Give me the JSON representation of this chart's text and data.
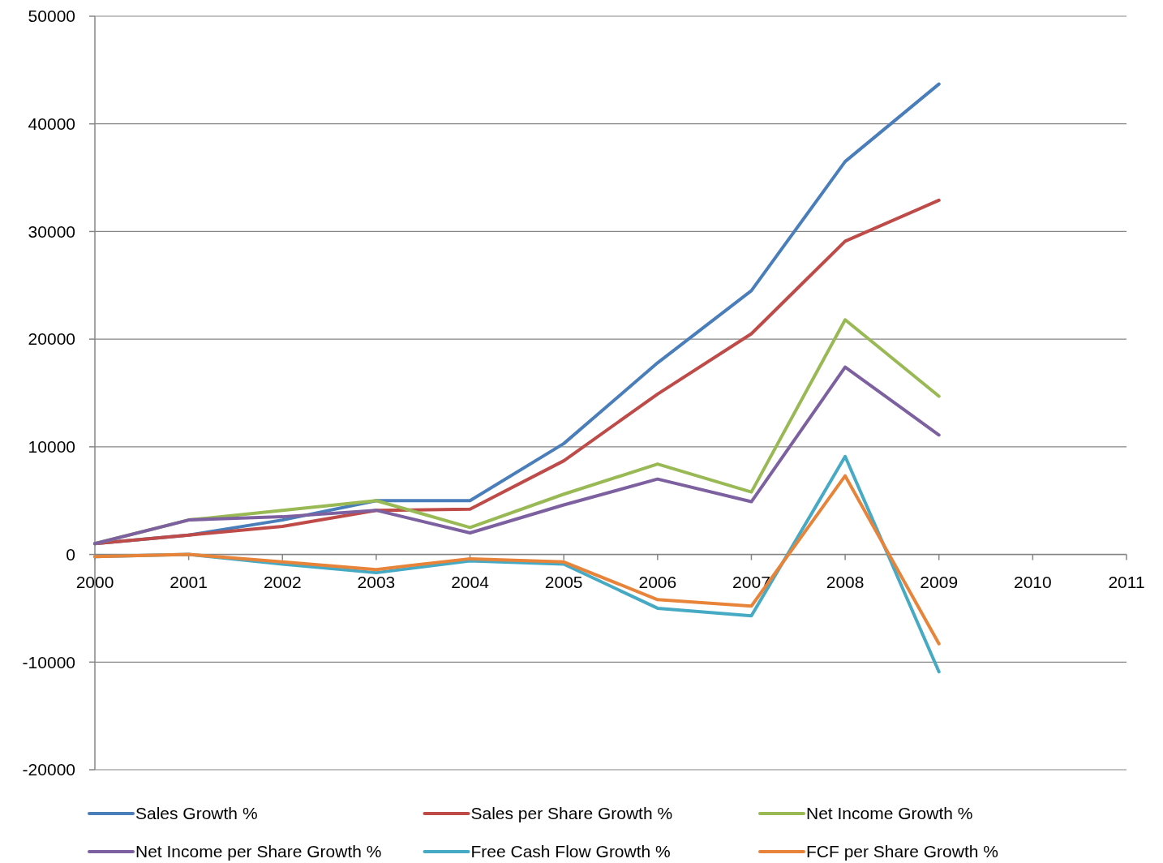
{
  "chart_data": {
    "type": "line",
    "x": [
      2000,
      2001,
      2002,
      2003,
      2004,
      2005,
      2006,
      2007,
      2008,
      2009
    ],
    "xlim": [
      2000,
      2011
    ],
    "xticks": [
      2000,
      2001,
      2002,
      2003,
      2004,
      2005,
      2006,
      2007,
      2008,
      2009,
      2010,
      2011
    ],
    "ylim": [
      -20000,
      50000
    ],
    "yticks": [
      -20000,
      -10000,
      0,
      10000,
      20000,
      30000,
      40000,
      50000
    ],
    "grid": "y",
    "legend": "bottom",
    "marker": "none",
    "line_style": "solid",
    "series": [
      {
        "name": "Sales Growth %",
        "color": "#4a7ebb",
        "values": [
          1000,
          1800,
          3200,
          5000,
          5000,
          10300,
          17800,
          24500,
          36500,
          43700
        ]
      },
      {
        "name": "Sales per Share Growth %",
        "color": "#be4b48",
        "values": [
          1000,
          1800,
          2600,
          4100,
          4200,
          8700,
          14900,
          20500,
          29100,
          32900
        ]
      },
      {
        "name": "Net Income Growth %",
        "color": "#98b954",
        "values": [
          1000,
          3200,
          4100,
          5000,
          2500,
          5600,
          8400,
          5800,
          21800,
          14700
        ]
      },
      {
        "name": "Net Income per Share Growth %",
        "color": "#7d60a0",
        "values": [
          1000,
          3200,
          3500,
          4100,
          2000,
          4600,
          7000,
          4900,
          17400,
          11100
        ]
      },
      {
        "name": "Free Cash Flow Growth %",
        "color": "#46aac5",
        "values": [
          -200,
          0,
          -900,
          -1700,
          -600,
          -900,
          -5000,
          -5700,
          9100,
          -10900
        ]
      },
      {
        "name": "FCF per Share Growth %",
        "color": "#e8843a",
        "values": [
          -200,
          0,
          -700,
          -1400,
          -400,
          -700,
          -4200,
          -4800,
          7300,
          -8300
        ]
      }
    ]
  }
}
